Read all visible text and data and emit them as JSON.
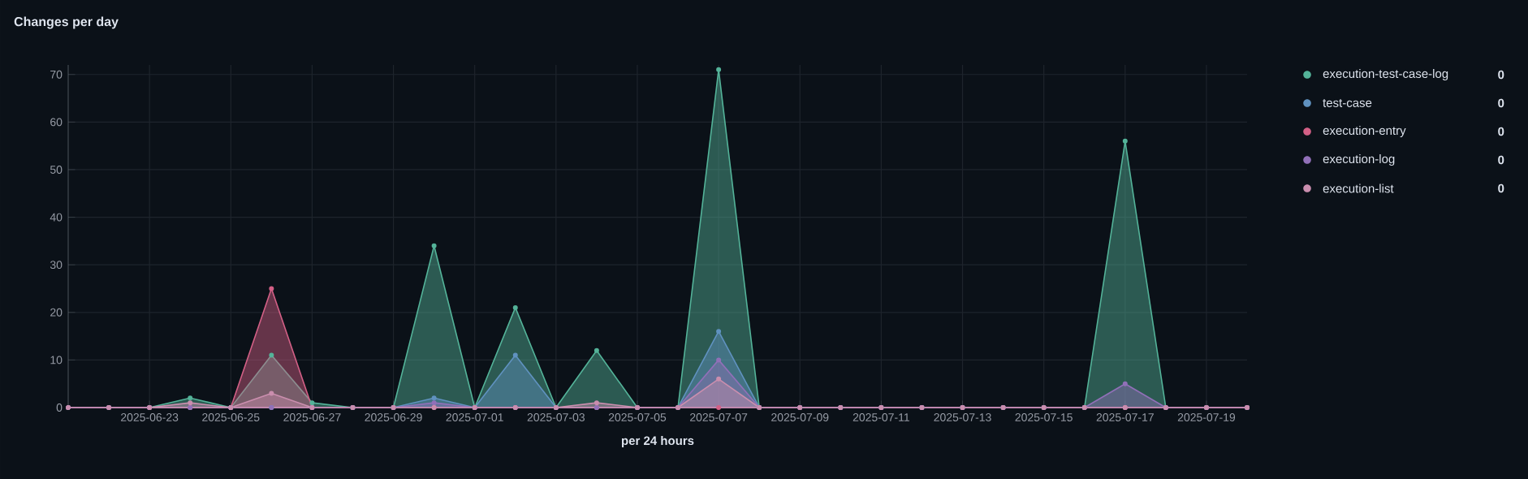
{
  "chart_data": {
    "type": "area",
    "title": "Changes per day",
    "xlabel": "per 24 hours",
    "x": [
      "2025-06-21",
      "2025-06-22",
      "2025-06-23",
      "2025-06-24",
      "2025-06-25",
      "2025-06-26",
      "2025-06-27",
      "2025-06-28",
      "2025-06-29",
      "2025-06-30",
      "2025-07-01",
      "2025-07-02",
      "2025-07-03",
      "2025-07-04",
      "2025-07-05",
      "2025-07-06",
      "2025-07-07",
      "2025-07-08",
      "2025-07-09",
      "2025-07-10",
      "2025-07-11",
      "2025-07-12",
      "2025-07-13",
      "2025-07-14",
      "2025-07-15",
      "2025-07-16",
      "2025-07-17",
      "2025-07-18",
      "2025-07-19",
      "2025-07-20"
    ],
    "series": [
      {
        "name": "execution-test-case-log",
        "color": "#54b399",
        "values": [
          0,
          0,
          0,
          2,
          0,
          11,
          1,
          0,
          0,
          34,
          0,
          21,
          0,
          12,
          0,
          0,
          71,
          0,
          0,
          0,
          0,
          0,
          0,
          0,
          0,
          0,
          56,
          0,
          0,
          0
        ]
      },
      {
        "name": "test-case",
        "color": "#6092c0",
        "values": [
          0,
          0,
          0,
          0,
          0,
          0,
          0,
          0,
          0,
          2,
          0,
          11,
          0,
          0,
          0,
          0,
          16,
          0,
          0,
          0,
          0,
          0,
          0,
          0,
          0,
          0,
          0,
          0,
          0,
          0
        ]
      },
      {
        "name": "execution-entry",
        "color": "#d36086",
        "values": [
          0,
          0,
          0,
          0,
          0,
          25,
          0,
          0,
          0,
          0,
          0,
          0,
          0,
          0,
          0,
          0,
          0,
          0,
          0,
          0,
          0,
          0,
          0,
          0,
          0,
          0,
          0,
          0,
          0,
          0
        ]
      },
      {
        "name": "execution-log",
        "color": "#9170b8",
        "values": [
          0,
          0,
          0,
          0,
          0,
          0,
          0,
          0,
          0,
          1,
          0,
          0,
          0,
          0,
          0,
          0,
          10,
          0,
          0,
          0,
          0,
          0,
          0,
          0,
          0,
          0,
          5,
          0,
          0,
          0
        ]
      },
      {
        "name": "execution-list",
        "color": "#ca8eae",
        "values": [
          0,
          0,
          0,
          1,
          0,
          3,
          0,
          0,
          0,
          0,
          0,
          0,
          0,
          1,
          0,
          0,
          6,
          0,
          0,
          0,
          0,
          0,
          0,
          0,
          0,
          0,
          0,
          0,
          0,
          0
        ]
      }
    ],
    "xlim": [
      "2025-06-21",
      "2025-07-20"
    ],
    "xticks": [
      {
        "value": "2025-06-23",
        "label": "2025-06-23"
      },
      {
        "value": "2025-06-25",
        "label": "2025-06-25"
      },
      {
        "value": "2025-06-27",
        "label": "2025-06-27"
      },
      {
        "value": "2025-06-29",
        "label": "2025-06-29"
      },
      {
        "value": "2025-07-01",
        "label": "2025-07-01"
      },
      {
        "value": "2025-07-03",
        "label": "2025-07-03"
      },
      {
        "value": "2025-07-05",
        "label": "2025-07-05"
      },
      {
        "value": "2025-07-07",
        "label": "2025-07-07"
      },
      {
        "value": "2025-07-09",
        "label": "2025-07-09"
      },
      {
        "value": "2025-07-11",
        "label": "2025-07-11"
      },
      {
        "value": "2025-07-13",
        "label": "2025-07-13"
      },
      {
        "value": "2025-07-15",
        "label": "2025-07-15"
      },
      {
        "value": "2025-07-17",
        "label": "2025-07-17"
      },
      {
        "value": "2025-07-19",
        "label": "2025-07-19"
      }
    ],
    "ylim": [
      0,
      72
    ],
    "yticks": [
      0,
      10,
      20,
      30,
      40,
      50,
      60,
      70
    ],
    "annotations": [
      "0",
      "0",
      "0",
      "0",
      "0"
    ],
    "grid": true,
    "legend": "right",
    "marker": "circle",
    "line_style": "solid"
  }
}
